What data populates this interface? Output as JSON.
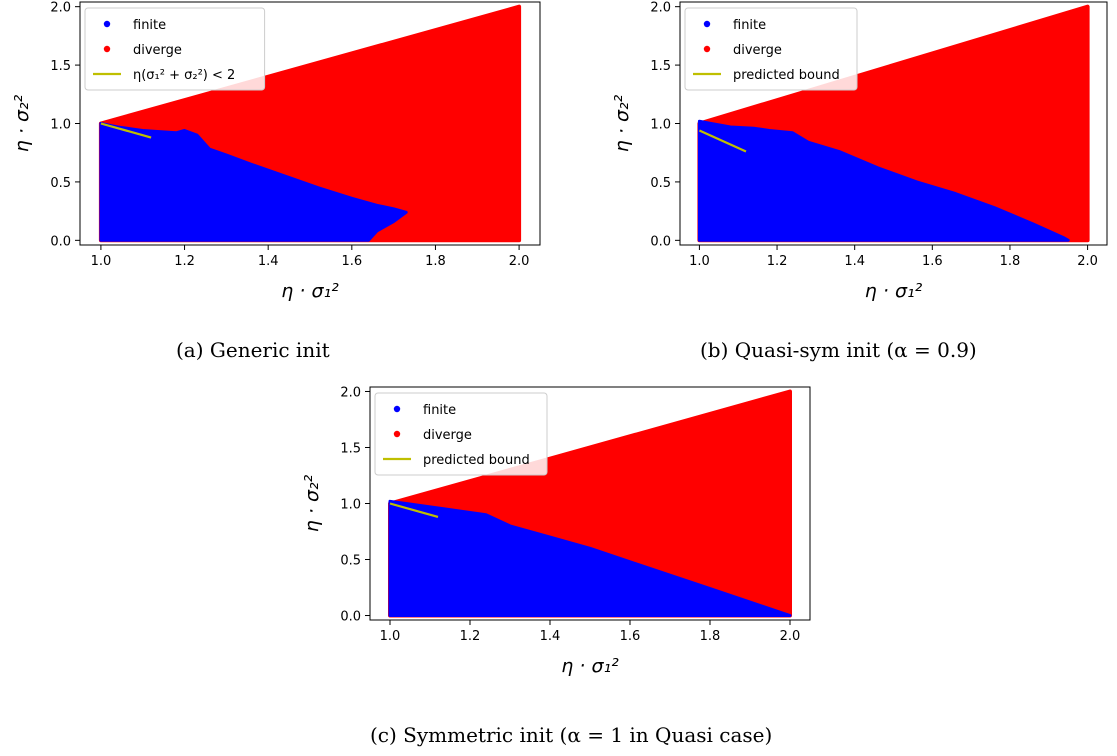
{
  "chart_data": [
    {
      "type": "scatter",
      "panel": "a",
      "caption": "(a) Generic init",
      "xlabel": "η · σ₁²",
      "ylabel": "η · σ₂²",
      "xlim": [
        0.95,
        2.05
      ],
      "ylim": [
        -0.04,
        2.04
      ],
      "x_ticks": [
        1.0,
        1.2,
        1.4,
        1.6,
        1.8,
        2.0
      ],
      "y_ticks": [
        0.0,
        0.5,
        1.0,
        1.5,
        2.0
      ],
      "tick_format_x": [
        "1.0",
        "1.2",
        "1.4",
        "1.6",
        "1.8",
        "2.0"
      ],
      "tick_format_y": [
        "0.0",
        "0.5",
        "1.0",
        "1.5",
        "2.0"
      ],
      "legend_position": "top-left",
      "legend": [
        {
          "label": "finite",
          "color": "#0000ff",
          "marker": "dot"
        },
        {
          "label": "diverge",
          "color": "#ff0000",
          "marker": "dot"
        },
        {
          "label": "η(σ₁² + σ₂²) < 2",
          "color": "#bfbf00",
          "marker": "line"
        }
      ],
      "diverge_region": [
        [
          1.0,
          1.0
        ],
        [
          2.0,
          2.0
        ],
        [
          2.0,
          0.0
        ],
        [
          1.0,
          0.0
        ]
      ],
      "finite_boundary": [
        [
          1.0,
          1.0
        ],
        [
          1.04,
          0.97
        ],
        [
          1.1,
          0.94
        ],
        [
          1.18,
          0.92
        ],
        [
          1.2,
          0.94
        ],
        [
          1.23,
          0.9
        ],
        [
          1.26,
          0.78
        ],
        [
          1.3,
          0.73
        ],
        [
          1.36,
          0.65
        ],
        [
          1.44,
          0.55
        ],
        [
          1.52,
          0.45
        ],
        [
          1.6,
          0.36
        ],
        [
          1.66,
          0.3
        ],
        [
          1.7,
          0.27
        ],
        [
          1.73,
          0.24
        ],
        [
          1.7,
          0.16
        ],
        [
          1.66,
          0.08
        ],
        [
          1.64,
          0.0
        ],
        [
          1.0,
          0.0
        ]
      ],
      "bound_line": [
        [
          1.0,
          1.0
        ],
        [
          1.12,
          0.88
        ]
      ]
    },
    {
      "type": "scatter",
      "panel": "b",
      "caption": "(b) Quasi-sym init (α = 0.9)",
      "xlabel": "η · σ₁²",
      "ylabel": "η · σ₂²",
      "xlim": [
        0.95,
        2.05
      ],
      "ylim": [
        -0.04,
        2.04
      ],
      "x_ticks": [
        1.0,
        1.2,
        1.4,
        1.6,
        1.8,
        2.0
      ],
      "y_ticks": [
        0.0,
        0.5,
        1.0,
        1.5,
        2.0
      ],
      "tick_format_x": [
        "1.0",
        "1.2",
        "1.4",
        "1.6",
        "1.8",
        "2.0"
      ],
      "tick_format_y": [
        "0.0",
        "0.5",
        "1.0",
        "1.5",
        "2.0"
      ],
      "legend_position": "top-left",
      "legend": [
        {
          "label": "finite",
          "color": "#0000ff",
          "marker": "dot"
        },
        {
          "label": "diverge",
          "color": "#ff0000",
          "marker": "dot"
        },
        {
          "label": "predicted bound",
          "color": "#bfbf00",
          "marker": "line"
        }
      ],
      "diverge_region": [
        [
          1.0,
          1.0
        ],
        [
          2.0,
          2.0
        ],
        [
          2.0,
          0.0
        ],
        [
          1.0,
          0.0
        ]
      ],
      "finite_boundary": [
        [
          1.0,
          1.02
        ],
        [
          1.03,
          1.0
        ],
        [
          1.08,
          0.97
        ],
        [
          1.14,
          0.96
        ],
        [
          1.18,
          0.94
        ],
        [
          1.24,
          0.92
        ],
        [
          1.28,
          0.84
        ],
        [
          1.36,
          0.76
        ],
        [
          1.46,
          0.62
        ],
        [
          1.56,
          0.5
        ],
        [
          1.66,
          0.4
        ],
        [
          1.76,
          0.28
        ],
        [
          1.86,
          0.14
        ],
        [
          1.94,
          0.02
        ],
        [
          1.95,
          0.0
        ],
        [
          1.0,
          0.0
        ]
      ],
      "bound_line": [
        [
          1.0,
          0.94
        ],
        [
          1.12,
          0.76
        ]
      ]
    },
    {
      "type": "scatter",
      "panel": "c",
      "caption": "(c) Symmetric init (α = 1 in Quasi case)",
      "xlabel": "η · σ₁²",
      "ylabel": "η · σ₂²",
      "xlim": [
        0.95,
        2.05
      ],
      "ylim": [
        -0.04,
        2.04
      ],
      "x_ticks": [
        1.0,
        1.2,
        1.4,
        1.6,
        1.8,
        2.0
      ],
      "y_ticks": [
        0.0,
        0.5,
        1.0,
        1.5,
        2.0
      ],
      "tick_format_x": [
        "1.0",
        "1.2",
        "1.4",
        "1.6",
        "1.8",
        "2.0"
      ],
      "tick_format_y": [
        "0.0",
        "0.5",
        "1.0",
        "1.5",
        "2.0"
      ],
      "legend_position": "top-left",
      "legend": [
        {
          "label": "finite",
          "color": "#0000ff",
          "marker": "dot"
        },
        {
          "label": "diverge",
          "color": "#ff0000",
          "marker": "dot"
        },
        {
          "label": "predicted bound",
          "color": "#bfbf00",
          "marker": "line"
        }
      ],
      "diverge_region": [
        [
          1.0,
          1.0
        ],
        [
          2.0,
          2.0
        ],
        [
          2.0,
          0.0
        ],
        [
          1.0,
          0.0
        ]
      ],
      "finite_boundary": [
        [
          1.0,
          1.02
        ],
        [
          1.04,
          1.0
        ],
        [
          1.1,
          0.97
        ],
        [
          1.18,
          0.93
        ],
        [
          1.24,
          0.9
        ],
        [
          1.3,
          0.8
        ],
        [
          1.4,
          0.7
        ],
        [
          1.5,
          0.6
        ],
        [
          1.6,
          0.48
        ],
        [
          1.7,
          0.36
        ],
        [
          1.8,
          0.24
        ],
        [
          1.9,
          0.12
        ],
        [
          2.0,
          0.0
        ],
        [
          1.0,
          0.0
        ]
      ],
      "bound_line": [
        [
          1.0,
          1.0
        ],
        [
          1.12,
          0.88
        ]
      ]
    }
  ]
}
